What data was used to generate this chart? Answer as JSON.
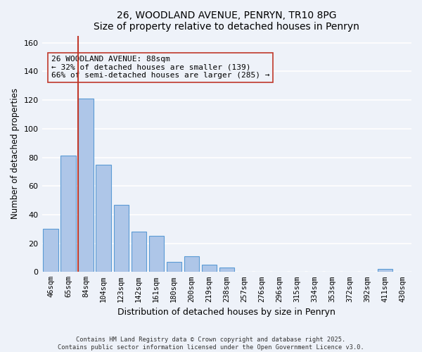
{
  "title": "26, WOODLAND AVENUE, PENRYN, TR10 8PG",
  "subtitle": "Size of property relative to detached houses in Penryn",
  "xlabel": "Distribution of detached houses by size in Penryn",
  "ylabel": "Number of detached properties",
  "bar_values": [
    30,
    81,
    121,
    75,
    47,
    28,
    25,
    7,
    11,
    5,
    3,
    0,
    0,
    0,
    0,
    0,
    0,
    0,
    0,
    2,
    0
  ],
  "bar_labels": [
    "46sqm",
    "65sqm",
    "84sqm",
    "104sqm",
    "123sqm",
    "142sqm",
    "161sqm",
    "180sqm",
    "200sqm",
    "219sqm",
    "238sqm",
    "257sqm",
    "276sqm",
    "296sqm",
    "315sqm",
    "334sqm",
    "353sqm",
    "372sqm",
    "392sqm",
    "411sqm",
    "430sqm"
  ],
  "bar_color": "#aec6e8",
  "bar_edge_color": "#5b9bd5",
  "ylim": [
    0,
    165
  ],
  "yticks": [
    0,
    20,
    40,
    60,
    80,
    100,
    120,
    140,
    160
  ],
  "vline_x": 1.575,
  "vline_color": "#c0392b",
  "annotation_title": "26 WOODLAND AVENUE: 88sqm",
  "annotation_line1": "← 32% of detached houses are smaller (139)",
  "annotation_line2": "66% of semi-detached houses are larger (285) →",
  "footer_line1": "Contains HM Land Registry data © Crown copyright and database right 2025.",
  "footer_line2": "Contains public sector information licensed under the Open Government Licence v3.0.",
  "background_color": "#eef2f9",
  "grid_color": "#ffffff"
}
